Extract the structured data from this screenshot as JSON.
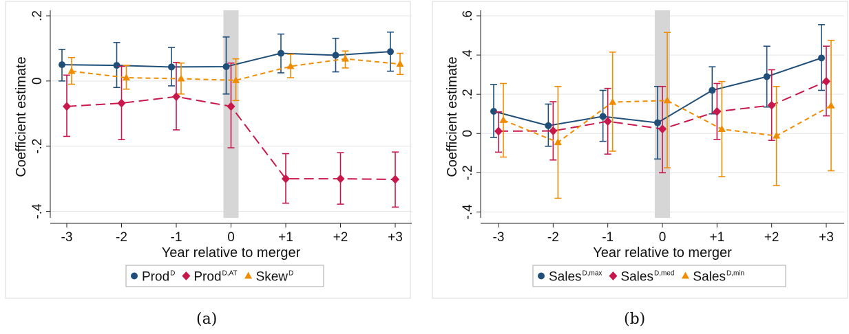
{
  "chart_data": [
    {
      "type": "line",
      "caption": "(a)",
      "xlabel": "Year relative to merger",
      "ylabel": "Coefficient estimate",
      "categories": [
        "-3",
        "-2",
        "-1",
        "0",
        "+1",
        "+2",
        "+3"
      ],
      "ylim": [
        -0.42,
        0.2
      ],
      "yticks": [
        0.2,
        0,
        -0.2,
        -0.4
      ],
      "ytick_labels": [
        ".2",
        "0",
        "-.2",
        "-.4"
      ],
      "grid": true,
      "legend_position": "bottom",
      "shaded_x": "0",
      "series": [
        {
          "name": "Prod",
          "superscript": "D",
          "color": "#1f4e79",
          "marker": "circle",
          "dash": "solid",
          "values": [
            0.05,
            0.048,
            0.043,
            0.044,
            0.085,
            0.079,
            0.09
          ],
          "ci_low": [
            0.0,
            -0.02,
            -0.015,
            -0.04,
            0.025,
            0.028,
            0.03
          ],
          "ci_high": [
            0.097,
            0.118,
            0.103,
            0.135,
            0.144,
            0.131,
            0.15
          ]
        },
        {
          "name": "Prod",
          "superscript": "D,AT",
          "color": "#c8174a",
          "marker": "diamond",
          "dash": "long",
          "values": [
            -0.078,
            -0.068,
            -0.048,
            -0.078,
            -0.3,
            -0.3,
            -0.302
          ],
          "ci_low": [
            -0.17,
            -0.18,
            -0.15,
            -0.205,
            -0.375,
            -0.378,
            -0.387
          ],
          "ci_high": [
            0.018,
            0.045,
            0.057,
            0.055,
            -0.223,
            -0.22,
            -0.218
          ]
        },
        {
          "name": "Skew",
          "superscript": "D",
          "color": "#f08c00",
          "marker": "triangle",
          "dash": "short",
          "values": [
            0.03,
            0.01,
            0.007,
            0.002,
            0.045,
            0.068,
            0.052
          ],
          "ci_low": [
            -0.01,
            -0.025,
            -0.04,
            -0.06,
            0.01,
            0.04,
            0.02
          ],
          "ci_high": [
            0.072,
            0.048,
            0.055,
            0.068,
            0.082,
            0.092,
            0.085
          ]
        }
      ]
    },
    {
      "type": "line",
      "caption": "(b)",
      "xlabel": "Year relative to merger",
      "ylabel": "Coefficient estimate",
      "categories": [
        "-3",
        "-2",
        "-1",
        "0",
        "+1",
        "+2",
        "+3"
      ],
      "ylim": [
        -0.43,
        0.6
      ],
      "yticks": [
        0.6,
        0.4,
        0.2,
        0,
        -0.2,
        -0.4
      ],
      "ytick_labels": [
        ".6",
        ".4",
        ".2",
        "0",
        "-.2",
        "-.4"
      ],
      "grid": true,
      "legend_position": "bottom",
      "shaded_x": "0",
      "series": [
        {
          "name": "Sales",
          "superscript": "D,max",
          "color": "#1f4e79",
          "marker": "circle",
          "dash": "solid",
          "values": [
            0.113,
            0.04,
            0.087,
            0.055,
            0.22,
            0.29,
            0.385
          ],
          "ci_low": [
            -0.02,
            -0.065,
            -0.04,
            -0.13,
            0.1,
            0.135,
            0.22
          ],
          "ci_high": [
            0.25,
            0.15,
            0.22,
            0.24,
            0.34,
            0.445,
            0.555
          ]
        },
        {
          "name": "Sales",
          "superscript": "D,med",
          "color": "#c8174a",
          "marker": "diamond",
          "dash": "long",
          "values": [
            0.012,
            0.013,
            0.062,
            0.023,
            0.112,
            0.144,
            0.266
          ],
          "ci_low": [
            -0.095,
            -0.135,
            -0.105,
            -0.2,
            -0.03,
            -0.035,
            0.09
          ],
          "ci_high": [
            0.11,
            0.162,
            0.23,
            0.24,
            0.255,
            0.325,
            0.445
          ]
        },
        {
          "name": "Sales",
          "superscript": "D,min",
          "color": "#f08c00",
          "marker": "triangle",
          "dash": "short",
          "values": [
            0.068,
            -0.045,
            0.16,
            0.168,
            0.022,
            -0.012,
            0.142
          ],
          "ci_low": [
            -0.12,
            -0.33,
            -0.09,
            -0.175,
            -0.22,
            -0.265,
            -0.19
          ],
          "ci_high": [
            0.255,
            0.24,
            0.415,
            0.515,
            0.265,
            0.24,
            0.475
          ]
        }
      ]
    }
  ]
}
